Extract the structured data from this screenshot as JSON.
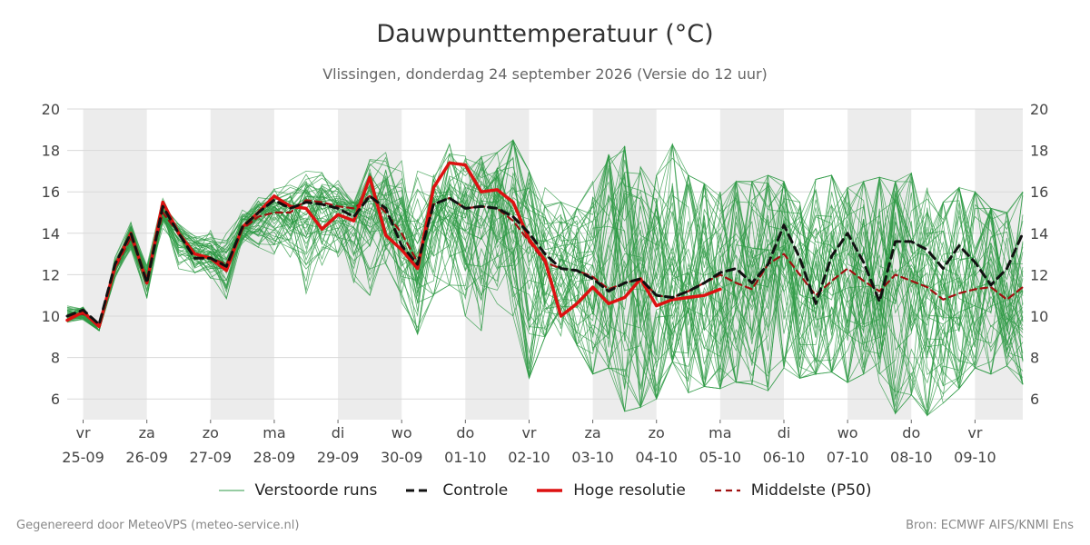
{
  "title": "Dauwpunttemperatuur (°C)",
  "subtitle": "Vlissingen, donderdag 24 september 2026 (Versie do 12 uur)",
  "footer": {
    "left": "Gegenereerd door MeteoVPS (meteo-service.nl)",
    "right": "Bron: ECMWF AIFS/KNMI Ens"
  },
  "colors": {
    "ensemble": "#2e9a44",
    "control": "#111111",
    "hires": "#dd1111",
    "median": "#a01010",
    "weekend_band": "#ececec",
    "grid": "#d9d9d9"
  },
  "legend": [
    {
      "key": "ensemble",
      "label": "Verstoorde runs",
      "icon": "thin-green-line"
    },
    {
      "key": "control",
      "label": "Controle",
      "icon": "dashed-black-line"
    },
    {
      "key": "hires",
      "label": "Hoge resolutie",
      "icon": "solid-red-line"
    },
    {
      "key": "median",
      "label": "Middelste (P50)",
      "icon": "dashed-darkred-line"
    }
  ],
  "chart_data": {
    "type": "line",
    "title": "Dauwpunttemperatuur (°C)",
    "ylim": [
      5,
      20
    ],
    "yticks": [
      6,
      8,
      10,
      12,
      14,
      16,
      18,
      20
    ],
    "y_axis_both_sides": true,
    "grid": true,
    "x_unit": "days from first tick (00 UTC 25-09)",
    "xlim": [
      -0.25,
      14.75
    ],
    "x_ticks": [
      {
        "day": "vr",
        "date": "25-09"
      },
      {
        "day": "za",
        "date": "26-09"
      },
      {
        "day": "zo",
        "date": "27-09"
      },
      {
        "day": "ma",
        "date": "28-09"
      },
      {
        "day": "di",
        "date": "29-09"
      },
      {
        "day": "wo",
        "date": "30-09"
      },
      {
        "day": "do",
        "date": "01-10"
      },
      {
        "day": "vr",
        "date": "02-10"
      },
      {
        "day": "za",
        "date": "03-10"
      },
      {
        "day": "zo",
        "date": "04-10"
      },
      {
        "day": "ma",
        "date": "05-10"
      },
      {
        "day": "di",
        "date": "06-10"
      },
      {
        "day": "wo",
        "date": "07-10"
      },
      {
        "day": "do",
        "date": "08-10"
      },
      {
        "day": "vr",
        "date": "09-10"
      }
    ],
    "shaded_days": [
      0,
      2,
      4,
      6,
      8,
      10,
      12,
      14
    ],
    "legend_position": "bottom",
    "series": [
      {
        "name": "Controle",
        "style": "dashed",
        "color": "#111111",
        "x": [
          -0.25,
          0,
          0.25,
          0.5,
          0.75,
          1,
          1.25,
          1.5,
          1.75,
          2,
          2.25,
          2.5,
          2.75,
          3,
          3.25,
          3.5,
          3.75,
          4,
          4.25,
          4.5,
          4.75,
          5,
          5.25,
          5.5,
          5.75,
          6,
          6.25,
          6.5,
          6.75,
          7,
          7.25,
          7.5,
          7.75,
          8,
          8.25,
          8.5,
          8.75,
          9,
          9.25,
          9.5,
          9.75,
          10,
          10.25,
          10.5,
          10.75,
          11,
          11.25,
          11.5,
          11.75,
          12,
          12.25,
          12.5,
          12.75,
          13,
          13.25,
          13.5,
          13.75,
          14,
          14.25,
          14.5,
          14.75
        ],
        "y": [
          10.0,
          10.3,
          9.6,
          12.5,
          14.0,
          11.6,
          15.3,
          14.0,
          12.8,
          12.8,
          12.4,
          14.3,
          15.0,
          15.6,
          15.2,
          15.5,
          15.4,
          15.2,
          14.8,
          15.8,
          15.2,
          13.4,
          12.5,
          15.4,
          15.7,
          15.2,
          15.3,
          15.2,
          14.8,
          14.0,
          13.0,
          12.3,
          12.2,
          11.8,
          11.2,
          11.6,
          11.8,
          11.0,
          10.9,
          11.2,
          11.6,
          12.1,
          12.3,
          11.6,
          12.5,
          14.4,
          12.8,
          10.6,
          12.9,
          14.0,
          12.6,
          10.7,
          13.6,
          13.6,
          13.2,
          12.3,
          13.4,
          12.6,
          11.5,
          12.3,
          14.0
        ]
      },
      {
        "name": "Hoge resolutie",
        "style": "solid",
        "color": "#dd1111",
        "x": [
          -0.25,
          0,
          0.25,
          0.5,
          0.75,
          1,
          1.25,
          1.5,
          1.75,
          2,
          2.25,
          2.5,
          2.75,
          3,
          3.25,
          3.5,
          3.75,
          4,
          4.25,
          4.5,
          4.75,
          5,
          5.25,
          5.5,
          5.75,
          6,
          6.25,
          6.5,
          6.75,
          7,
          7.25,
          7.5,
          7.75,
          8,
          8.25,
          8.5,
          8.75,
          9,
          9.25,
          9.5,
          9.75,
          10
        ],
        "y": [
          9.8,
          10.2,
          9.5,
          12.4,
          14.0,
          11.6,
          15.5,
          14.0,
          13.0,
          12.8,
          12.2,
          14.3,
          15.0,
          15.8,
          15.3,
          15.2,
          14.2,
          14.9,
          14.6,
          16.7,
          13.9,
          13.2,
          12.3,
          16.2,
          17.4,
          17.3,
          16.0,
          16.1,
          15.5,
          13.7,
          12.7,
          10.0,
          10.6,
          11.4,
          10.6,
          10.9,
          11.8,
          10.5,
          10.8,
          10.9,
          11.0,
          11.3
        ]
      },
      {
        "name": "Middelste (P50)",
        "style": "dashed",
        "color": "#a01010",
        "x": [
          -0.25,
          0,
          0.25,
          0.5,
          0.75,
          1,
          1.25,
          1.5,
          1.75,
          2,
          2.25,
          2.5,
          2.75,
          3,
          3.25,
          3.5,
          3.75,
          4,
          4.25,
          4.5,
          4.75,
          5,
          5.25,
          5.5,
          5.75,
          6,
          6.25,
          6.5,
          6.75,
          7,
          7.25,
          7.5,
          7.75,
          8,
          8.25,
          8.5,
          8.75,
          9,
          9.25,
          9.5,
          9.75,
          10,
          10.25,
          10.5,
          10.75,
          11,
          11.25,
          11.5,
          11.75,
          12,
          12.25,
          12.5,
          12.75,
          13,
          13.25,
          13.5,
          13.75,
          14,
          14.25,
          14.5,
          14.75
        ],
        "y": [
          10.0,
          10.1,
          9.6,
          12.3,
          13.8,
          11.8,
          15.0,
          14.0,
          13.0,
          12.8,
          12.5,
          14.2,
          14.8,
          15.0,
          15.0,
          15.6,
          15.5,
          15.3,
          15.2,
          15.8,
          15.0,
          14.0,
          12.6,
          15.4,
          15.7,
          15.2,
          15.3,
          15.2,
          14.6,
          13.6,
          12.6,
          12.3,
          12.2,
          11.9,
          11.3,
          11.6,
          11.8,
          11.0,
          10.9,
          11.2,
          11.6,
          12.0,
          11.6,
          11.3,
          12.5,
          13.0,
          12.0,
          11.0,
          11.7,
          12.3,
          11.7,
          11.2,
          12.0,
          11.7,
          11.4,
          10.8,
          11.1,
          11.3,
          11.4,
          10.8,
          11.4
        ]
      }
    ],
    "ensemble": {
      "name": "Verstoorde runs",
      "members": 50,
      "style": "thin",
      "color": "#2e9a44",
      "x": [
        -0.25,
        0,
        0.25,
        0.5,
        0.75,
        1,
        1.25,
        1.5,
        1.75,
        2,
        2.25,
        2.5,
        2.75,
        3,
        3.25,
        3.5,
        3.75,
        4,
        4.25,
        4.5,
        4.75,
        5,
        5.25,
        5.5,
        5.75,
        6,
        6.25,
        6.5,
        6.75,
        7,
        7.25,
        7.5,
        7.75,
        8,
        8.25,
        8.5,
        8.75,
        9,
        9.25,
        9.5,
        9.75,
        10,
        10.25,
        10.5,
        10.75,
        11,
        11.25,
        11.5,
        11.75,
        12,
        12.25,
        12.5,
        12.75,
        13,
        13.25,
        13.5,
        13.75,
        14,
        14.25,
        14.5,
        14.75
      ],
      "p50": [
        10.0,
        10.1,
        9.6,
        12.3,
        13.8,
        11.8,
        15.0,
        14.0,
        13.0,
        12.8,
        12.5,
        14.2,
        14.8,
        15.0,
        15.0,
        15.6,
        15.5,
        15.3,
        15.2,
        15.8,
        15.0,
        14.0,
        12.6,
        15.4,
        15.7,
        15.2,
        15.3,
        15.2,
        14.6,
        13.6,
        12.6,
        12.3,
        12.2,
        11.9,
        11.3,
        11.6,
        11.8,
        11.0,
        10.9,
        11.2,
        11.6,
        12.0,
        11.6,
        11.3,
        12.5,
        13.0,
        12.0,
        11.0,
        11.7,
        12.3,
        11.7,
        11.2,
        12.0,
        11.7,
        11.4,
        10.8,
        11.1,
        11.3,
        11.4,
        10.8,
        11.4
      ],
      "min": [
        9.4,
        9.6,
        8.9,
        11.5,
        12.8,
        10.1,
        13.6,
        11.2,
        11.5,
        11.3,
        10.0,
        12.8,
        13.0,
        12.7,
        12.5,
        10.6,
        12.2,
        12.5,
        11.6,
        11.0,
        12.5,
        10.5,
        8.9,
        11.0,
        11.5,
        10.0,
        9.3,
        10.6,
        10.0,
        7.0,
        9.0,
        8.7,
        8.6,
        7.2,
        7.5,
        5.4,
        5.6,
        6.0,
        7.8,
        6.3,
        6.6,
        6.5,
        6.8,
        6.7,
        6.4,
        7.5,
        7.0,
        7.2,
        7.3,
        6.8,
        7.2,
        6.8,
        5.3,
        6.2,
        5.2,
        5.8,
        6.5,
        7.5,
        7.2,
        7.6,
        6.7
      ],
      "max": [
        11.0,
        10.8,
        9.3,
        13.3,
        15.3,
        13.0,
        16.2,
        14.8,
        14.5,
        15.0,
        14.5,
        15.5,
        16.0,
        16.5,
        16.8,
        17.2,
        17.3,
        16.8,
        15.6,
        18.0,
        18.0,
        17.5,
        17.0,
        16.8,
        18.3,
        18.0,
        17.8,
        17.9,
        18.5,
        17.0,
        16.2,
        15.5,
        15.2,
        16.5,
        17.8,
        18.2,
        17.2,
        16.8,
        18.3,
        16.8,
        16.4,
        16.0,
        16.5,
        16.5,
        16.8,
        16.5,
        15.5,
        16.6,
        16.8,
        16.2,
        16.5,
        16.7,
        16.5,
        16.9,
        16.2,
        15.5,
        16.2,
        16.0,
        15.2,
        15.0,
        16.0
      ]
    }
  }
}
